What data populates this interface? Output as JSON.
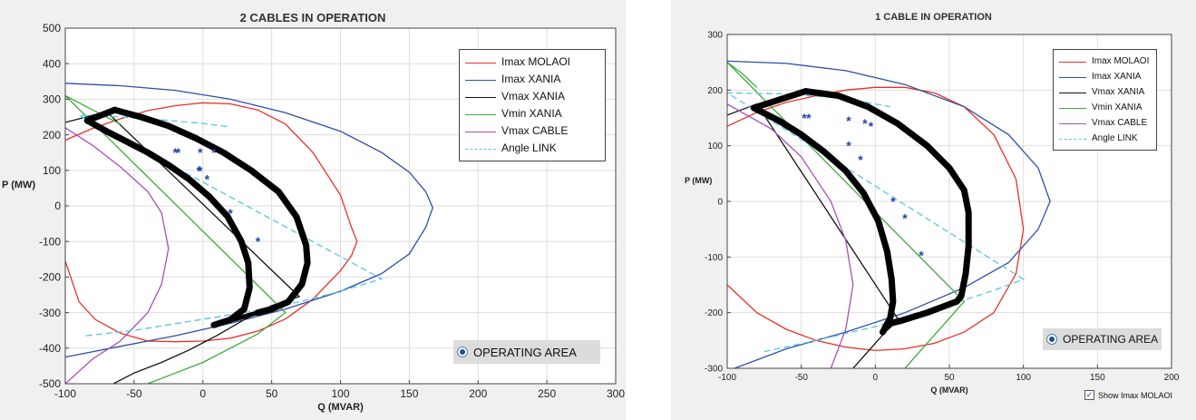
{
  "chart_data": [
    {
      "type": "line",
      "title": "2 CABLES IN OPERATION",
      "xlabel": "Q (MVAR)",
      "ylabel": "P (MW)",
      "xlim": [
        -100,
        300
      ],
      "ylim": [
        -500,
        500
      ],
      "xticks": [
        -100,
        -50,
        0,
        50,
        100,
        150,
        200,
        250,
        300
      ],
      "yticks": [
        -500,
        -400,
        -300,
        -200,
        -100,
        0,
        100,
        200,
        300,
        400,
        500
      ],
      "xtick_labels": [
        "-100",
        "-50",
        "0",
        "50",
        "100",
        "150",
        "200",
        "250",
        "300"
      ],
      "ytick_labels": [
        "-500",
        "-400",
        "-300",
        "-200",
        "-100",
        "0",
        "100",
        "200",
        "300",
        "400",
        "500"
      ],
      "grid": true,
      "legend_position": "top-right",
      "series": [
        {
          "name": "Imax MOLAOI",
          "color": "#e8312a",
          "style": "solid",
          "x": [
            -100,
            -90,
            -78,
            -60,
            -40,
            -20,
            0,
            20,
            40,
            60,
            80,
            100,
            108,
            112,
            108,
            100,
            80,
            60,
            40,
            20,
            0,
            -20,
            -40,
            -60,
            -80,
            -100
          ],
          "y": [
            -155,
            -270,
            -320,
            -358,
            -380,
            -382,
            -380,
            -372,
            -352,
            -318,
            -262,
            -182,
            -140,
            -100,
            -60,
            30,
            150,
            230,
            270,
            287,
            290,
            282,
            268,
            245,
            218,
            185
          ]
        },
        {
          "name": "Imax XANIA",
          "color": "#2b4fa8",
          "style": "solid",
          "x": [
            -100,
            -60,
            -20,
            20,
            60,
            100,
            130,
            150,
            162,
            167,
            162,
            150,
            130,
            100,
            60,
            20,
            -20,
            -60,
            -100
          ],
          "y": [
            -425,
            -395,
            -365,
            -330,
            -290,
            -240,
            -190,
            -135,
            -60,
            -5,
            40,
            95,
            150,
            210,
            262,
            300,
            325,
            338,
            345
          ]
        },
        {
          "name": "Vmax XANIA",
          "color": "#111111",
          "style": "solid",
          "x": [
            -65,
            -50,
            -30,
            -10,
            10,
            30,
            50,
            70,
            -70,
            -80,
            -90,
            -100
          ],
          "y": [
            -500,
            -470,
            -440,
            -405,
            -365,
            -320,
            -280,
            -255,
            265,
            255,
            245,
            235
          ]
        },
        {
          "name": "Vmin XANIA",
          "color": "#3daa3a",
          "style": "solid",
          "x": [
            -40,
            -20,
            0,
            20,
            40,
            60,
            -100,
            -90,
            -80,
            -70,
            -60
          ],
          "y": [
            -500,
            -470,
            -440,
            -400,
            -360,
            -300,
            310,
            290,
            270,
            250,
            230
          ]
        },
        {
          "name": "Vmax CABLE",
          "color": "#a64fb8",
          "style": "solid",
          "x": [
            -100,
            -80,
            -60,
            -40,
            -30,
            -25,
            -30,
            -40,
            -60,
            -80,
            -100
          ],
          "y": [
            -500,
            -430,
            -380,
            -300,
            -220,
            -120,
            -20,
            40,
            110,
            170,
            220
          ]
        },
        {
          "name": "Angle LINK",
          "color": "#5bc3e0",
          "style": "dashed",
          "x": [
            -85,
            -50,
            -10,
            30,
            70,
            100,
            130,
            -90,
            -60,
            -30,
            0,
            20
          ],
          "y": [
            -365,
            -350,
            -325,
            -300,
            -270,
            -240,
            -205,
            255,
            250,
            242,
            232,
            222
          ]
        }
      ],
      "operating_area": {
        "inner_x": [
          -84,
          -70,
          -55,
          -40,
          -25,
          -10,
          5,
          18,
          28,
          33,
          34,
          30,
          20,
          8
        ],
        "inner_y": [
          240,
          210,
          180,
          150,
          115,
          75,
          25,
          -30,
          -100,
          -160,
          -230,
          -290,
          -320,
          -335
        ],
        "outer_x": [
          -64,
          -45,
          -25,
          -5,
          15,
          35,
          55,
          68,
          75,
          76,
          72,
          62,
          50,
          40
        ],
        "outer_y": [
          270,
          250,
          225,
          190,
          150,
          100,
          40,
          -30,
          -110,
          -160,
          -220,
          -270,
          -290,
          -300
        ]
      },
      "star_points": {
        "x": [
          -20,
          -18,
          -2,
          -2,
          3,
          8,
          -3,
          20,
          40
        ],
        "y": [
          150,
          150,
          150,
          100,
          75,
          150,
          100,
          -20,
          -100
        ]
      },
      "legend": [
        "Imax MOLAOI",
        "Imax XANIA",
        "Vmax XANIA",
        "Vmin XANIA",
        "Vmax CABLE",
        "Angle LINK"
      ],
      "button_label": "OPERATING AREA"
    },
    {
      "type": "line",
      "title": "1 CABLE IN OPERATION",
      "xlabel": "Q (MVAR)",
      "ylabel": "P (MW)",
      "xlim": [
        -100,
        200
      ],
      "ylim": [
        -300,
        300
      ],
      "xticks": [
        -100,
        -50,
        0,
        50,
        100,
        150,
        200
      ],
      "yticks": [
        -300,
        -200,
        -100,
        0,
        100,
        200,
        300
      ],
      "xtick_labels": [
        "-100",
        "-50",
        "0",
        "50",
        "100",
        "150",
        "200"
      ],
      "ytick_labels": [
        "-300",
        "-200",
        "-100",
        "0",
        "100",
        "200",
        "300"
      ],
      "grid": true,
      "legend_position": "top-right",
      "series": [
        {
          "name": "Imax MOLAOI",
          "color": "#e8312a",
          "style": "solid",
          "x": [
            -100,
            -80,
            -60,
            -40,
            -20,
            0,
            20,
            40,
            60,
            80,
            95,
            100,
            95,
            80,
            60,
            40,
            20,
            0,
            -20,
            -40,
            -60,
            -80,
            -100
          ],
          "y": [
            -150,
            -200,
            -230,
            -250,
            -262,
            -268,
            -265,
            -255,
            -235,
            -200,
            -130,
            -50,
            40,
            120,
            170,
            195,
            205,
            205,
            200,
            190,
            178,
            160,
            135
          ]
        },
        {
          "name": "Imax XANIA",
          "color": "#2b4fa8",
          "style": "solid",
          "x": [
            -95,
            -60,
            -20,
            20,
            60,
            90,
            110,
            118,
            110,
            90,
            60,
            20,
            -20,
            -60,
            -100
          ],
          "y": [
            -300,
            -265,
            -235,
            -200,
            -155,
            -110,
            -50,
            0,
            60,
            120,
            170,
            210,
            235,
            248,
            252
          ]
        },
        {
          "name": "Vmax XANIA",
          "color": "#111111",
          "style": "solid",
          "x": [
            -15,
            -5,
            5,
            15,
            -80,
            -90,
            -100
          ],
          "y": [
            -300,
            -270,
            -240,
            -210,
            175,
            165,
            155
          ]
        },
        {
          "name": "Vmin XANIA",
          "color": "#3daa3a",
          "style": "solid",
          "x": [
            20,
            30,
            40,
            50,
            60,
            -100,
            -90,
            -80
          ],
          "y": [
            -300,
            -270,
            -240,
            -210,
            -180,
            250,
            230,
            205
          ]
        },
        {
          "name": "Vmax CABLE",
          "color": "#a64fb8",
          "style": "solid",
          "x": [
            -30,
            -20,
            -15,
            -20,
            -30,
            -50,
            -70,
            -90,
            -100
          ],
          "y": [
            -300,
            -230,
            -150,
            -70,
            0,
            80,
            130,
            160,
            175
          ]
        },
        {
          "name": "Angle LINK",
          "color": "#5bc3e0",
          "style": "dashed",
          "x": [
            -75,
            -40,
            0,
            40,
            80,
            100,
            -100,
            -60,
            -20,
            10
          ],
          "y": [
            -270,
            -250,
            -225,
            -195,
            -160,
            -140,
            195,
            193,
            185,
            170
          ]
        }
      ],
      "operating_area": {
        "inner_x": [
          -82,
          -65,
          -50,
          -35,
          -20,
          -8,
          2,
          8,
          11,
          12,
          10,
          5
        ],
        "inner_y": [
          168,
          145,
          120,
          90,
          55,
          15,
          -35,
          -90,
          -140,
          -180,
          -210,
          -235
        ],
        "outer_x": [
          -47,
          -25,
          -5,
          15,
          35,
          50,
          60,
          63,
          63,
          61,
          58,
          55,
          45,
          35,
          25,
          18,
          12
        ],
        "outer_y": [
          198,
          190,
          170,
          140,
          100,
          60,
          20,
          -20,
          -80,
          -130,
          -170,
          -180,
          -190,
          -200,
          -208,
          -214,
          -218
        ]
      },
      "star_points": {
        "x": [
          -48,
          -45,
          -18,
          -18,
          -10,
          -7,
          -3,
          12,
          20,
          31
        ],
        "y": [
          150,
          150,
          145,
          100,
          75,
          140,
          135,
          0,
          -30,
          -97
        ]
      },
      "legend": [
        "Imax MOLAOI",
        "Imax XANIA",
        "Vmax XANIA",
        "Vmin XANIA",
        "Vmax CABLE",
        "Angle LINK"
      ],
      "button_label": "OPERATING AREA",
      "checkbox_label": "Show Imax MOLAOI",
      "checkbox_checked": true
    }
  ]
}
